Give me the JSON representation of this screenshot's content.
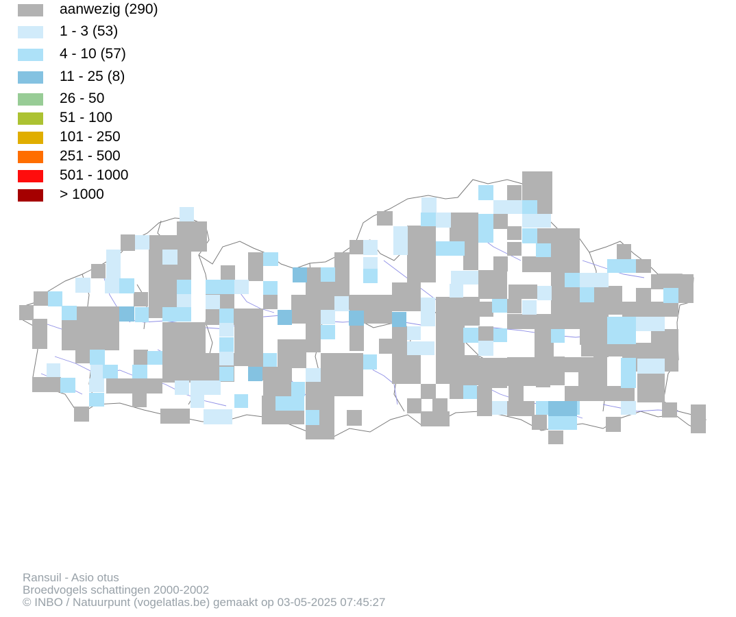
{
  "legend": {
    "items": [
      {
        "label": "aanwezig (290)",
        "color": "#b2b2b2"
      },
      {
        "label": "1 - 3 (53)",
        "color": "#d1ebfa"
      },
      {
        "label": "4 - 10 (57)",
        "color": "#ade1f8"
      },
      {
        "label": "11 - 25 (8)",
        "color": "#84c2e1"
      },
      {
        "label": "26 - 50",
        "color": "#98cc96"
      },
      {
        "label": "51 - 100",
        "color": "#acc232"
      },
      {
        "label": "101 - 250",
        "color": "#e0ae00"
      },
      {
        "label": "251 - 500",
        "color": "#ff6e00"
      },
      {
        "label": "501 - 1000",
        "color": "#ff0d0d"
      },
      {
        "label": "> 1000",
        "color": "#a50000"
      }
    ]
  },
  "footer": {
    "species": "Ransuil - Asio otus",
    "dataset": "Broedvogels schattingen 2000-2002",
    "credit": "© INBO / Natuurpunt (vogelatlas.be) gemaakt op 03-05-2025 07:45:27"
  }
}
